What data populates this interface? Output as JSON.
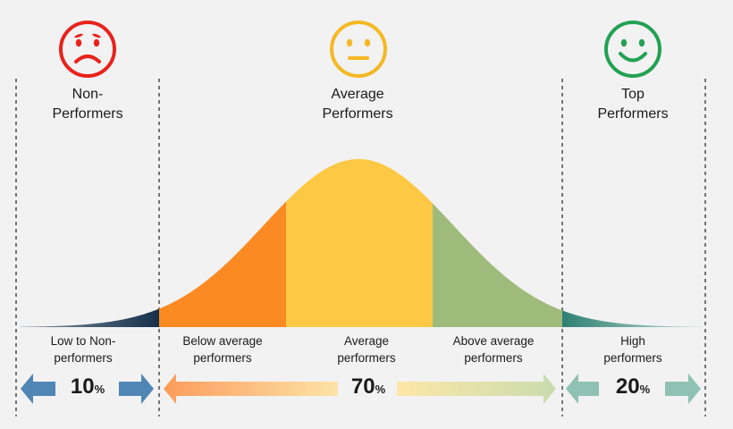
{
  "groups": {
    "non": {
      "title_line1": "Non-",
      "title_line2": "Performers",
      "face": "sad-face-icon",
      "color": "#e8231c"
    },
    "average": {
      "title_line1": "Average",
      "title_line2": "Performers",
      "face": "neutral-face-icon",
      "color": "#f4b824"
    },
    "top": {
      "title_line1": "Top",
      "title_line2": "Performers",
      "face": "happy-face-icon",
      "color": "#23a153"
    }
  },
  "segments": [
    {
      "line1": "Low to Non-",
      "line2": "performers",
      "color": "#1e3a52"
    },
    {
      "line1": "Below average",
      "line2": "performers",
      "color": "#fb8a22"
    },
    {
      "line1": "Average",
      "line2": "performers",
      "color": "#fdc843"
    },
    {
      "line1": "Above average",
      "line2": "performers",
      "color": "#9fbb7c"
    },
    {
      "line1": "High",
      "line2": "performers",
      "color": "#3f8c80"
    }
  ],
  "percentages": {
    "non": {
      "value": "10",
      "unit": "%",
      "arrow_color": "#4f86b3"
    },
    "average": {
      "value": "70",
      "unit": "%",
      "arrow_color_left": "#fca468",
      "arrow_color_right": "#d6e1b8"
    },
    "top": {
      "value": "20",
      "unit": "%",
      "arrow_color": "#8fc2b3"
    }
  }
}
